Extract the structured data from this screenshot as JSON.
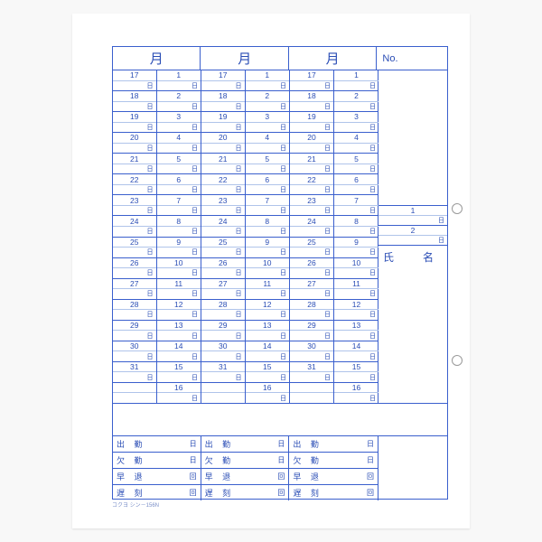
{
  "header": {
    "month_label": "月",
    "no_label": "No."
  },
  "side": {
    "name_label": "氏　名",
    "extra_numbers": [
      "1",
      "2"
    ]
  },
  "day_unit": "日",
  "columns": {
    "left_days": [
      "17",
      "18",
      "19",
      "20",
      "21",
      "22",
      "23",
      "24",
      "25",
      "26",
      "27",
      "28",
      "29",
      "30",
      "31",
      ""
    ],
    "right_days": [
      "1",
      "2",
      "3",
      "4",
      "5",
      "6",
      "7",
      "8",
      "9",
      "10",
      "11",
      "12",
      "13",
      "14",
      "15",
      "16"
    ]
  },
  "summary": {
    "rows": [
      {
        "label": "出 勤",
        "unit": "日"
      },
      {
        "label": "欠 勤",
        "unit": "日"
      },
      {
        "label": "早 退",
        "unit": "回"
      },
      {
        "label": "遅 刻",
        "unit": "回"
      }
    ]
  },
  "footer": "コクヨ シン－156N",
  "colors": {
    "line": "#3a5fcd",
    "text": "#2a4db5",
    "paper": "#ffffff",
    "bg": "#f8f8f8"
  }
}
